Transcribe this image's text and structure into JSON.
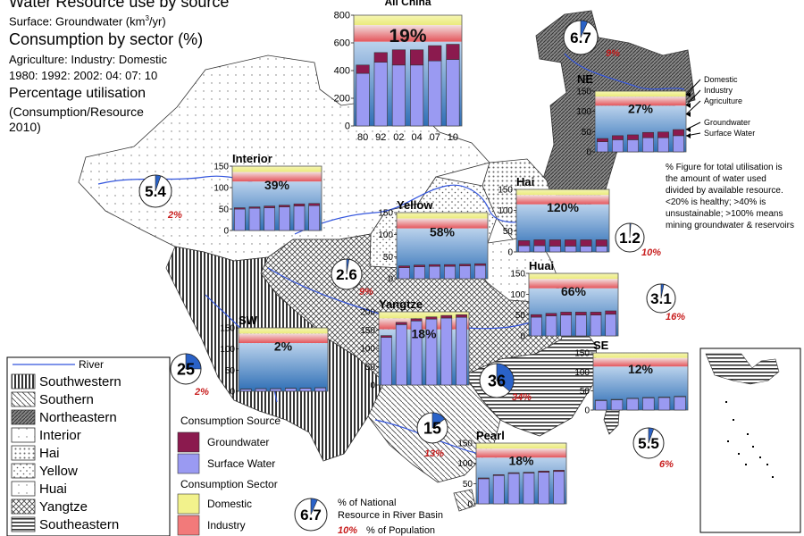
{
  "headings": {
    "title": "Water Resource use by source",
    "surface": "Surface: Groundwater (km",
    "surface_sup": "3",
    "surface_tail": "/yr)",
    "consumption": "Consumption by sector (%)",
    "sectors": "Agriculture: Industry: Domestic",
    "years": "1980: 1992: 2002: 04: 07: 10",
    "utilisation": "Percentage utilisation",
    "util_sub1": "(Consumption/Resource",
    "util_sub2": "2010)"
  },
  "note": {
    "lines": [
      "% Figure for total utilisation is",
      "the amount of water used",
      "divided by available resource.",
      "<20% is healthy; >40% is",
      "unsustainable; >100% means",
      "mining groundwater & reservoirs"
    ]
  },
  "ne_labels": [
    "Domestic",
    "Industry",
    "Agriculture",
    "Groundwater",
    "Surface Water"
  ],
  "legend_regions": {
    "river": "River",
    "items": [
      "Southwestern",
      "Southern",
      "Northeastern",
      "Interior",
      "Hai",
      "Yellow",
      "Huai",
      "Yangtze",
      "Southeastern"
    ]
  },
  "legend_source": {
    "title": "Consumption Source",
    "groundwater": "Groundwater",
    "surface": "Surface Water"
  },
  "legend_sector": {
    "title": "Consumption Sector",
    "domestic": "Domestic",
    "industry": "Industry"
  },
  "legend_pie": {
    "value": "6.7",
    "label1": "% of National",
    "label2": "Resource in River Basin",
    "pop_value": "10%",
    "pop_label": "% of Population"
  },
  "colors": {
    "surface": "#9a9af2",
    "groundwater": "#8b1a4e",
    "domestic": "#f2f28c",
    "industry": "#f27a7a",
    "agriculture": "#5b8fc8",
    "pie": "#2a62c8",
    "popred": "#c81e1e",
    "river": "#3355dd"
  },
  "chart_data": [
    {
      "type": "bar",
      "region": "All China",
      "title": "All China",
      "categories": [
        "80",
        "92",
        "02",
        "04",
        "07",
        "10"
      ],
      "series": [
        {
          "name": "Surface Water",
          "values": [
            380,
            460,
            440,
            440,
            470,
            480
          ]
        },
        {
          "name": "Groundwater",
          "values": [
            60,
            70,
            110,
            110,
            110,
            110
          ]
        }
      ],
      "percent": "19%",
      "ylim": [
        0,
        800
      ],
      "yticks": [
        "0",
        "200",
        "400",
        "600",
        "800"
      ]
    },
    {
      "type": "bar",
      "region": "NE",
      "title": "NE",
      "percent": "27%",
      "series": [
        {
          "name": "Surface Water",
          "values": [
            25,
            30,
            30,
            35,
            35,
            40
          ]
        },
        {
          "name": "Groundwater",
          "values": [
            8,
            10,
            12,
            13,
            14,
            15
          ]
        }
      ],
      "ylim": [
        0,
        150
      ],
      "yticks": [
        "0",
        "50",
        "100",
        "150"
      ]
    },
    {
      "type": "bar",
      "region": "Interior",
      "title": "Interior",
      "percent": "39%",
      "series": [
        {
          "name": "Surface Water",
          "values": [
            50,
            52,
            53,
            55,
            57,
            58
          ]
        },
        {
          "name": "Groundwater",
          "values": [
            3,
            3,
            4,
            4,
            5,
            5
          ]
        }
      ],
      "ylim": [
        0,
        150
      ],
      "yticks": [
        "0",
        "50",
        "100",
        "150"
      ]
    },
    {
      "type": "bar",
      "region": "Yellow",
      "title": "Yellow",
      "percent": "58%",
      "series": [
        {
          "name": "Surface Water",
          "values": [
            25,
            27,
            28,
            28,
            29,
            30
          ]
        },
        {
          "name": "Groundwater",
          "values": [
            4,
            4,
            4,
            4,
            4,
            4
          ]
        }
      ],
      "ylim": [
        0,
        150
      ],
      "yticks": [
        "0",
        "50",
        "100",
        "150"
      ]
    },
    {
      "type": "bar",
      "region": "Hai",
      "title": "Hai",
      "percent": "120%",
      "series": [
        {
          "name": "Surface Water",
          "values": [
            15,
            15,
            14,
            14,
            14,
            14
          ]
        },
        {
          "name": "Groundwater",
          "values": [
            12,
            14,
            15,
            15,
            15,
            15
          ]
        }
      ],
      "ylim": [
        0,
        150
      ],
      "yticks": [
        "0",
        "50",
        "100",
        "150"
      ]
    },
    {
      "type": "bar",
      "region": "Huai",
      "title": "Huai",
      "percent": "66%",
      "series": [
        {
          "name": "Surface Water",
          "values": [
            45,
            48,
            50,
            50,
            50,
            52
          ]
        },
        {
          "name": "Groundwater",
          "values": [
            6,
            6,
            7,
            7,
            7,
            8
          ]
        }
      ],
      "ylim": [
        0,
        150
      ],
      "yticks": [
        "0",
        "50",
        "100",
        "150"
      ]
    },
    {
      "type": "bar",
      "region": "SW",
      "title": "SW",
      "percent": "2%",
      "series": [
        {
          "name": "Surface Water",
          "values": [
            5,
            6,
            6,
            7,
            7,
            8
          ]
        },
        {
          "name": "Groundwater",
          "values": [
            0.3,
            0.3,
            0.4,
            0.4,
            0.4,
            0.5
          ]
        }
      ],
      "ylim": [
        0,
        150
      ],
      "yticks": [
        "0",
        "50",
        "100",
        "150"
      ]
    },
    {
      "type": "bar",
      "region": "Yangtze",
      "title": "Yangtze",
      "percent": "18%",
      "series": [
        {
          "name": "Surface Water",
          "values": [
            130,
            165,
            175,
            180,
            183,
            185
          ]
        },
        {
          "name": "Groundwater",
          "values": [
            5,
            6,
            6,
            6,
            7,
            7
          ]
        }
      ],
      "ylim": [
        0,
        200
      ],
      "yticks": [
        "0",
        "50",
        "100",
        "150",
        "200"
      ]
    },
    {
      "type": "bar",
      "region": "SE",
      "title": "SE",
      "percent": "12%",
      "series": [
        {
          "name": "Surface Water",
          "values": [
            25,
            27,
            30,
            32,
            33,
            35
          ]
        },
        {
          "name": "Groundwater",
          "values": [
            1,
            1,
            1,
            1,
            1,
            1
          ]
        }
      ],
      "ylim": [
        0,
        150
      ],
      "yticks": [
        "0",
        "50",
        "100",
        "150"
      ]
    },
    {
      "type": "bar",
      "region": "Pearl",
      "title": "Pearl",
      "percent": "18%",
      "series": [
        {
          "name": "Surface Water",
          "values": [
            62,
            70,
            75,
            76,
            78,
            80
          ]
        },
        {
          "name": "Groundwater",
          "values": [
            2,
            2,
            2,
            2,
            3,
            3
          ]
        }
      ],
      "ylim": [
        0,
        150
      ],
      "yticks": [
        "0",
        "50",
        "100",
        "150"
      ]
    },
    {
      "type": "pie",
      "region": "NE",
      "label": "6.7",
      "share": 6.7,
      "population": "9%"
    },
    {
      "type": "pie",
      "region": "Interior",
      "label": "5.4",
      "share": 5.4,
      "population": "2%"
    },
    {
      "type": "pie",
      "region": "Yellow",
      "label": "2.6",
      "share": 2.6,
      "population": "9%"
    },
    {
      "type": "pie",
      "region": "Hai",
      "label": "1.2",
      "share": 1.2,
      "population": "10%"
    },
    {
      "type": "pie",
      "region": "Huai",
      "label": "3.1",
      "share": 3.1,
      "population": "16%"
    },
    {
      "type": "pie",
      "region": "SW",
      "label": "25",
      "share": 25,
      "population": "2%"
    },
    {
      "type": "pie",
      "region": "Yangtze",
      "label": "36",
      "share": 36,
      "population": "34%"
    },
    {
      "type": "pie",
      "region": "Pearl",
      "label": "15",
      "share": 15,
      "population": "13%"
    },
    {
      "type": "pie",
      "region": "SE",
      "label": "5.5",
      "share": 5.5,
      "population": "6%"
    }
  ]
}
